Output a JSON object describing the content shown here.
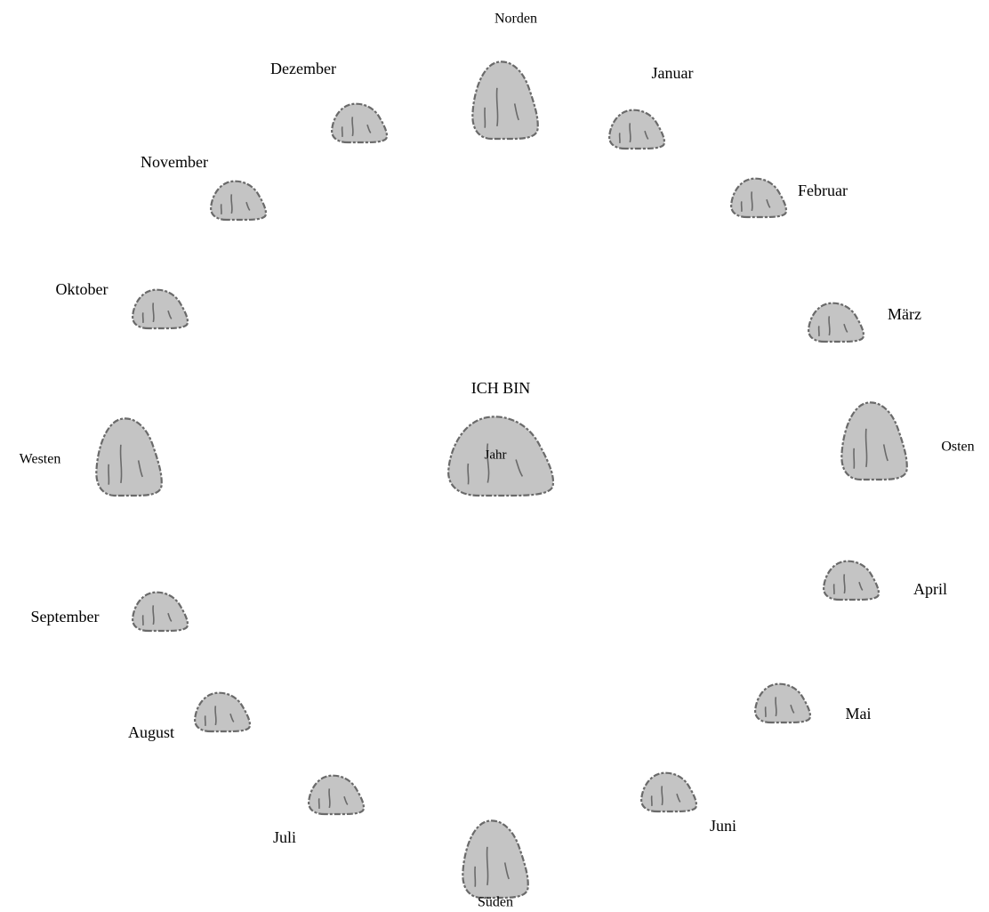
{
  "diagram": {
    "center": {
      "title": "ICH BIN",
      "label": "Jahr"
    },
    "nodes": [
      {
        "label": "Norden"
      },
      {
        "label": "Januar"
      },
      {
        "label": "Februar"
      },
      {
        "label": "März"
      },
      {
        "label": "Osten"
      },
      {
        "label": "April"
      },
      {
        "label": "Mai"
      },
      {
        "label": "Juni"
      },
      {
        "label": "Süden"
      },
      {
        "label": "Juli"
      },
      {
        "label": "August"
      },
      {
        "label": "September"
      },
      {
        "label": "Westen"
      },
      {
        "label": "Oktober"
      },
      {
        "label": "November"
      },
      {
        "label": "Dezember"
      }
    ]
  }
}
